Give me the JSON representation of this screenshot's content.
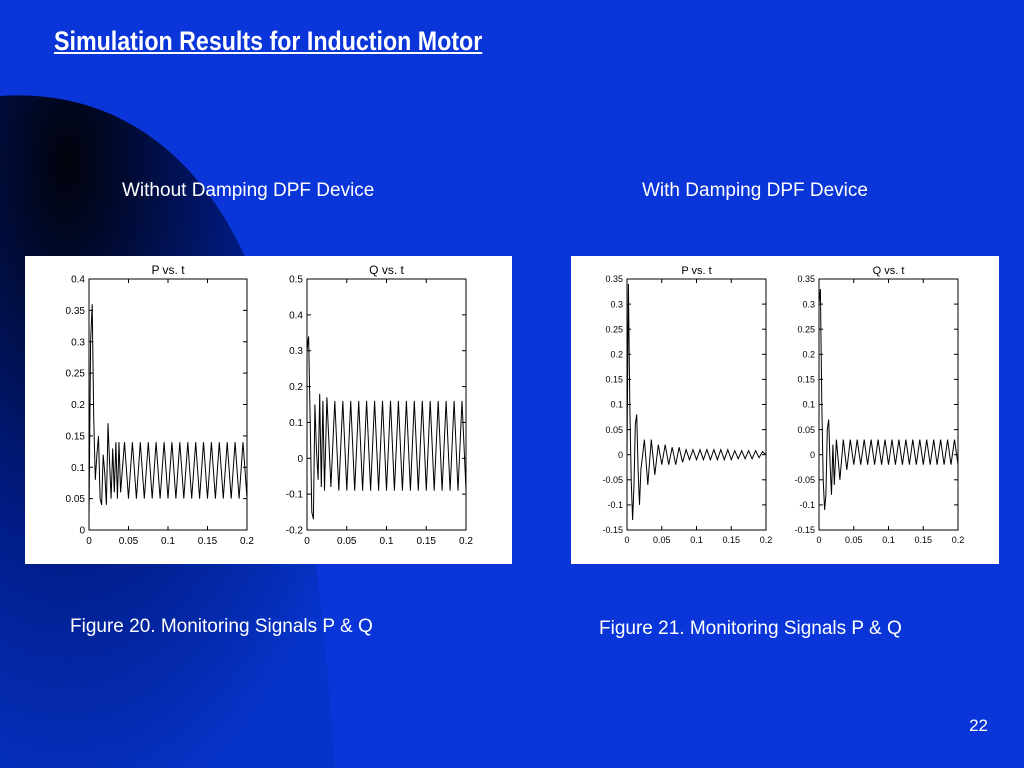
{
  "slide": {
    "title": "Simulation Results for Induction Motor",
    "left_subtitle": "Without Damping DPF Device",
    "right_subtitle": "With Damping DPF Device",
    "left_caption": "Figure 20. Monitoring Signals P & Q",
    "right_caption": "Figure 21. Monitoring Signals P & Q",
    "page_number": "22",
    "colors": {
      "background": "#0a35d8",
      "decoration": "#001a6e",
      "text": "#ffffff"
    }
  },
  "chart_data": [
    {
      "id": "fig20-P",
      "type": "line",
      "title": "P vs. t",
      "xlim": [
        0,
        0.2
      ],
      "ylim": [
        0,
        0.4
      ],
      "xticks": [
        0,
        0.05,
        0.1,
        0.15,
        0.2
      ],
      "xtick_labels": [
        "0",
        "0.05",
        "0.1",
        "0.15",
        "0.2"
      ],
      "yticks": [
        0,
        0.05,
        0.1,
        0.15,
        0.2,
        0.25,
        0.3,
        0.35,
        0.4
      ],
      "ytick_labels": [
        "0",
        "0.05",
        "0.1",
        "0.15",
        "0.2",
        "0.25",
        "0.3",
        "0.35",
        "0.4"
      ],
      "series": [
        {
          "x": [
            0,
            0.002,
            0.004,
            0.006,
            0.008,
            0.01,
            0.012,
            0.014,
            0.016,
            0.018,
            0.02,
            0.022,
            0.024,
            0.026,
            0.028,
            0.03,
            0.032,
            0.034,
            0.036,
            0.038,
            0.04,
            0.045,
            0.05,
            0.055,
            0.06,
            0.065,
            0.07,
            0.075,
            0.08,
            0.085,
            0.09,
            0.095,
            0.1,
            0.105,
            0.11,
            0.115,
            0.12,
            0.125,
            0.13,
            0.135,
            0.14,
            0.145,
            0.15,
            0.155,
            0.16,
            0.165,
            0.17,
            0.175,
            0.18,
            0.185,
            0.19,
            0.195,
            0.2
          ],
          "y": [
            0.02,
            0.3,
            0.36,
            0.18,
            0.08,
            0.12,
            0.15,
            0.05,
            0.04,
            0.12,
            0.09,
            0.04,
            0.17,
            0.11,
            0.05,
            0.13,
            0.06,
            0.14,
            0.05,
            0.14,
            0.06,
            0.14,
            0.05,
            0.14,
            0.05,
            0.14,
            0.05,
            0.14,
            0.05,
            0.14,
            0.05,
            0.14,
            0.05,
            0.14,
            0.05,
            0.14,
            0.05,
            0.14,
            0.05,
            0.14,
            0.05,
            0.14,
            0.05,
            0.14,
            0.05,
            0.14,
            0.05,
            0.14,
            0.05,
            0.14,
            0.05,
            0.14,
            0.05
          ]
        }
      ]
    },
    {
      "id": "fig20-Q",
      "type": "line",
      "title": "Q vs. t",
      "xlim": [
        0,
        0.2
      ],
      "ylim": [
        -0.2,
        0.5
      ],
      "xticks": [
        0,
        0.05,
        0.1,
        0.15,
        0.2
      ],
      "xtick_labels": [
        "0",
        "0.05",
        "0.1",
        "0.15",
        "0.2"
      ],
      "yticks": [
        -0.2,
        -0.1,
        0,
        0.1,
        0.2,
        0.3,
        0.4,
        0.5
      ],
      "ytick_labels": [
        "-0.2",
        "-0.1",
        "0",
        "0.1",
        "0.2",
        "0.3",
        "0.4",
        "0.5"
      ],
      "series": [
        {
          "x": [
            0,
            0.002,
            0.004,
            0.006,
            0.008,
            0.01,
            0.012,
            0.014,
            0.016,
            0.018,
            0.02,
            0.022,
            0.025,
            0.03,
            0.035,
            0.04,
            0.045,
            0.05,
            0.055,
            0.06,
            0.065,
            0.07,
            0.075,
            0.08,
            0.085,
            0.09,
            0.095,
            0.1,
            0.105,
            0.11,
            0.115,
            0.12,
            0.125,
            0.13,
            0.135,
            0.14,
            0.145,
            0.15,
            0.155,
            0.16,
            0.165,
            0.17,
            0.175,
            0.18,
            0.185,
            0.19,
            0.195,
            0.2
          ],
          "y": [
            0.3,
            0.34,
            0.1,
            -0.15,
            -0.17,
            0.15,
            0.02,
            -0.06,
            0.18,
            -0.08,
            0.16,
            -0.09,
            0.17,
            -0.08,
            0.16,
            -0.09,
            0.16,
            -0.09,
            0.16,
            -0.09,
            0.16,
            -0.09,
            0.16,
            -0.09,
            0.16,
            -0.09,
            0.16,
            -0.09,
            0.16,
            -0.09,
            0.16,
            -0.09,
            0.16,
            -0.09,
            0.16,
            -0.09,
            0.16,
            -0.09,
            0.16,
            -0.09,
            0.16,
            -0.09,
            0.16,
            -0.09,
            0.16,
            -0.09,
            0.16,
            -0.09
          ]
        }
      ]
    },
    {
      "id": "fig21-P",
      "type": "line",
      "title": "P vs. t",
      "xlim": [
        0,
        0.2
      ],
      "ylim": [
        -0.15,
        0.35
      ],
      "xticks": [
        0,
        0.05,
        0.1,
        0.15,
        0.2
      ],
      "xtick_labels": [
        "0",
        "0.05",
        "0.1",
        "0.15",
        "0.2"
      ],
      "yticks": [
        -0.15,
        -0.1,
        -0.05,
        0,
        0.05,
        0.1,
        0.15,
        0.2,
        0.25,
        0.3,
        0.35
      ],
      "ytick_labels": [
        "-0.15",
        "-0.1",
        "-0.05",
        "0",
        "0.05",
        "0.1",
        "0.15",
        "0.2",
        "0.25",
        "0.3",
        "0.35"
      ],
      "series": [
        {
          "x": [
            0,
            0.002,
            0.004,
            0.006,
            0.008,
            0.01,
            0.012,
            0.014,
            0.016,
            0.018,
            0.02,
            0.025,
            0.03,
            0.035,
            0.04,
            0.045,
            0.05,
            0.055,
            0.06,
            0.065,
            0.07,
            0.075,
            0.08,
            0.085,
            0.09,
            0.095,
            0.1,
            0.105,
            0.11,
            0.115,
            0.12,
            0.125,
            0.13,
            0.135,
            0.14,
            0.145,
            0.15,
            0.155,
            0.16,
            0.165,
            0.17,
            0.175,
            0.18,
            0.185,
            0.19,
            0.195,
            0.2
          ],
          "y": [
            0,
            0.34,
            0.1,
            -0.05,
            -0.13,
            -0.06,
            0.06,
            0.08,
            -0.03,
            -0.1,
            -0.03,
            0.03,
            -0.06,
            0.03,
            -0.04,
            0.02,
            -0.02,
            0.02,
            -0.02,
            0.015,
            -0.02,
            0.015,
            -0.015,
            0.01,
            -0.01,
            0.01,
            -0.01,
            0.01,
            -0.01,
            0.01,
            -0.01,
            0.01,
            -0.01,
            0.01,
            -0.01,
            0.01,
            -0.01,
            0.008,
            -0.008,
            0.008,
            -0.008,
            0.008,
            -0.008,
            0.008,
            -0.006,
            0.006,
            0
          ]
        }
      ]
    },
    {
      "id": "fig21-Q",
      "type": "line",
      "title": "Q vs. t",
      "xlim": [
        0,
        0.2
      ],
      "ylim": [
        -0.15,
        0.35
      ],
      "xticks": [
        0,
        0.05,
        0.1,
        0.15,
        0.2
      ],
      "xtick_labels": [
        "0",
        "0.05",
        "0.1",
        "0.15",
        "0.2"
      ],
      "yticks": [
        -0.15,
        -0.1,
        -0.05,
        0,
        0.05,
        0.1,
        0.15,
        0.2,
        0.25,
        0.3,
        0.35
      ],
      "ytick_labels": [
        "-0.15",
        "-0.1",
        "-0.05",
        "0",
        "0.05",
        "0.1",
        "0.15",
        "0.2",
        "0.25",
        "0.3",
        "0.35"
      ],
      "series": [
        {
          "x": [
            0,
            0.002,
            0.004,
            0.006,
            0.008,
            0.01,
            0.012,
            0.014,
            0.016,
            0.018,
            0.02,
            0.022,
            0.025,
            0.03,
            0.035,
            0.04,
            0.045,
            0.05,
            0.055,
            0.06,
            0.065,
            0.07,
            0.075,
            0.08,
            0.085,
            0.09,
            0.095,
            0.1,
            0.105,
            0.11,
            0.115,
            0.12,
            0.125,
            0.13,
            0.135,
            0.14,
            0.145,
            0.15,
            0.155,
            0.16,
            0.165,
            0.17,
            0.175,
            0.18,
            0.185,
            0.19,
            0.195,
            0.2
          ],
          "y": [
            0.3,
            0.33,
            0.1,
            -0.05,
            -0.11,
            -0.08,
            0.05,
            0.07,
            -0.02,
            -0.08,
            0.02,
            -0.06,
            0.03,
            -0.05,
            0.03,
            -0.03,
            0.03,
            -0.02,
            0.03,
            -0.02,
            0.03,
            -0.02,
            0.03,
            -0.02,
            0.03,
            -0.02,
            0.03,
            -0.02,
            0.03,
            -0.02,
            0.03,
            -0.02,
            0.03,
            -0.02,
            0.03,
            -0.02,
            0.03,
            -0.02,
            0.03,
            -0.02,
            0.03,
            -0.02,
            0.03,
            -0.02,
            0.03,
            -0.02,
            0.03,
            -0.02
          ]
        }
      ]
    }
  ]
}
